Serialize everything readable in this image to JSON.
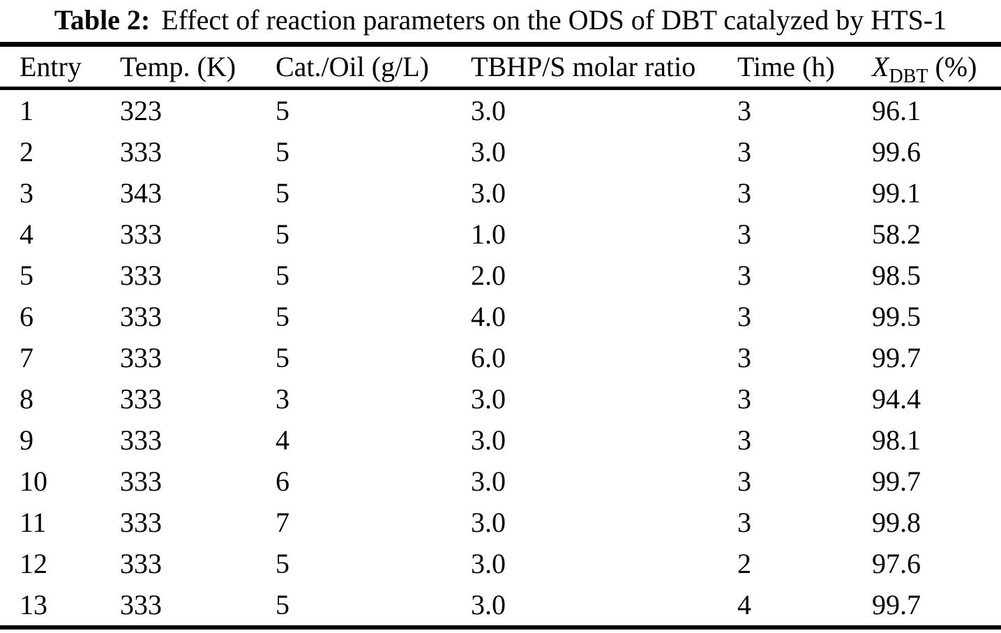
{
  "title": {
    "label": "Table 2:",
    "text": "Effect of reaction parameters on the ODS of DBT catalyzed by HTS-1"
  },
  "table": {
    "columns": [
      {
        "label": "Entry"
      },
      {
        "label": "Temp. (K)"
      },
      {
        "label": "Cat./Oil (g/L)"
      },
      {
        "label": "TBHP/S molar ratio"
      },
      {
        "label": "Time (h)"
      },
      {
        "symbol": "X",
        "subscript": "DBT",
        "suffix": "(%)"
      }
    ],
    "rows": [
      [
        "1",
        "323",
        "5",
        "3.0",
        "3",
        "96.1"
      ],
      [
        "2",
        "333",
        "5",
        "3.0",
        "3",
        "99.6"
      ],
      [
        "3",
        "343",
        "5",
        "3.0",
        "3",
        "99.1"
      ],
      [
        "4",
        "333",
        "5",
        "1.0",
        "3",
        "58.2"
      ],
      [
        "5",
        "333",
        "5",
        "2.0",
        "3",
        "98.5"
      ],
      [
        "6",
        "333",
        "5",
        "4.0",
        "3",
        "99.5"
      ],
      [
        "7",
        "333",
        "5",
        "6.0",
        "3",
        "99.7"
      ],
      [
        "8",
        "333",
        "3",
        "3.0",
        "3",
        "94.4"
      ],
      [
        "9",
        "333",
        "4",
        "3.0",
        "3",
        "98.1"
      ],
      [
        "10",
        "333",
        "6",
        "3.0",
        "3",
        "99.7"
      ],
      [
        "11",
        "333",
        "7",
        "3.0",
        "3",
        "99.8"
      ],
      [
        "12",
        "333",
        "5",
        "3.0",
        "2",
        "97.6"
      ],
      [
        "13",
        "333",
        "5",
        "3.0",
        "4",
        "99.7"
      ]
    ]
  }
}
